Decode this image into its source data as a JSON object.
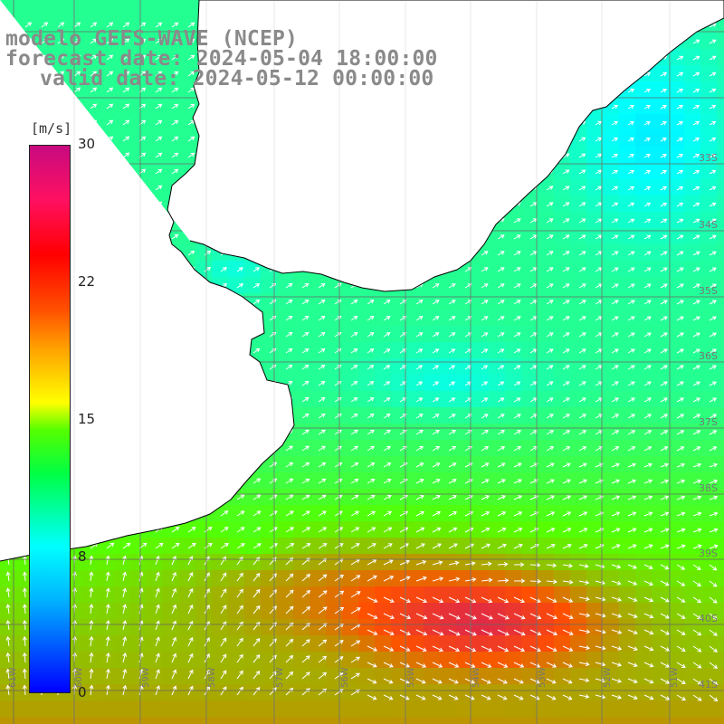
{
  "title": {
    "line1": "modelo GEFS-WAVE (NCEP)",
    "line2": "forecast date: 2024-05-04 18:00:00",
    "line3": "valid date: 2024-05-12 00:00:00"
  },
  "colorbar": {
    "unit": "[m/s]",
    "ticks": [
      "30",
      "22",
      "15",
      "8",
      "0"
    ],
    "stops": [
      {
        "value": 0,
        "color": "#0000ff"
      },
      {
        "value": 8,
        "color": "#00ffff"
      },
      {
        "value": 15,
        "color": "#55ff00"
      },
      {
        "value": 22,
        "color": "#ff5000"
      },
      {
        "value": 30,
        "color": "#c80a80"
      }
    ]
  },
  "lat_labels": [
    "33S",
    "34S",
    "35S",
    "36S",
    "37S",
    "38S",
    "39S",
    "40S",
    "41S"
  ],
  "lon_labels": [
    "61W",
    "60W",
    "59W",
    "58W",
    "57W",
    "56W",
    "55W",
    "54W",
    "53W",
    "52W",
    "51W"
  ],
  "map_style": {
    "land_color": "#ffffff",
    "grid_color": "#666666",
    "coast_color": "#000000",
    "arrow_color": "#ffffff"
  }
}
